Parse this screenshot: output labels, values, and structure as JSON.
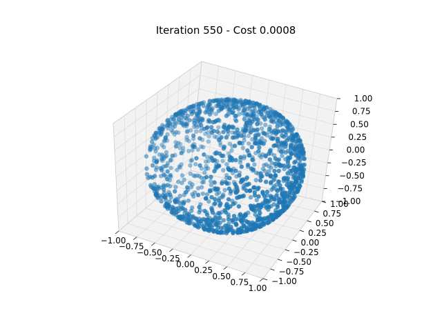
{
  "chart_data": {
    "type": "scatter",
    "title": "Iteration 550 - Cost 0.0008",
    "projection": "3d",
    "xlabel": "",
    "ylabel": "",
    "zlabel": "",
    "xlim": [
      -1.0,
      1.0
    ],
    "ylim": [
      -1.0,
      1.0
    ],
    "zlim": [
      -1.0,
      1.0
    ],
    "x_ticks": [
      -1.0,
      -0.75,
      -0.5,
      -0.25,
      0.0,
      0.25,
      0.5,
      0.75,
      1.0
    ],
    "y_ticks": [
      -1.0,
      -0.75,
      -0.5,
      -0.25,
      0.0,
      0.25,
      0.5,
      0.75,
      1.0
    ],
    "z_ticks": [
      -1.0,
      -0.75,
      -0.5,
      -0.25,
      0.0,
      0.25,
      0.5,
      0.75,
      1.0
    ],
    "x_tick_labels": [
      "−1.00",
      "−0.75",
      "−0.50",
      "−0.25",
      "0.00",
      "0.25",
      "0.50",
      "0.75",
      "1.00"
    ],
    "y_tick_labels": [
      "−1.00",
      "−0.75",
      "−0.50",
      "−0.25",
      "0.00",
      "0.25",
      "0.50",
      "0.75",
      "1.00"
    ],
    "z_tick_labels": [
      "−1.00",
      "−0.75",
      "−0.50",
      "−0.25",
      "0.00",
      "0.25",
      "0.50",
      "0.75",
      "1.00"
    ],
    "grid": true,
    "legend": "none",
    "marker_color": "#1f77b4",
    "pane_color": "#f2f2f2",
    "point_count_description": "dense sphere-like shell of points (approximately radius 1) with scattered interior outliers",
    "series": [
      {
        "points_xyz": [
          [
            0.0,
            0.0,
            1.0
          ],
          [
            0.3,
            0.2,
            0.93
          ],
          [
            -0.4,
            0.3,
            0.86
          ],
          [
            0.6,
            -0.3,
            0.74
          ],
          [
            -0.7,
            -0.4,
            0.59
          ],
          [
            0.9,
            0.1,
            0.42
          ],
          [
            -0.95,
            0.2,
            0.24
          ],
          [
            0.8,
            0.55,
            0.2
          ],
          [
            -0.6,
            0.78,
            0.15
          ],
          [
            0.1,
            -0.99,
            0.05
          ],
          [
            0.98,
            -0.1,
            0.0
          ],
          [
            -0.99,
            -0.05,
            0.0
          ],
          [
            0.5,
            0.86,
            -0.05
          ],
          [
            -0.3,
            -0.95,
            -0.1
          ],
          [
            0.7,
            -0.7,
            -0.15
          ],
          [
            -0.8,
            0.5,
            -0.3
          ],
          [
            0.85,
            0.3,
            -0.42
          ],
          [
            -0.6,
            -0.6,
            -0.52
          ],
          [
            0.4,
            0.6,
            -0.69
          ],
          [
            -0.3,
            0.4,
            -0.87
          ],
          [
            0.2,
            -0.3,
            -0.93
          ],
          [
            0.0,
            0.0,
            -1.0
          ],
          [
            -0.1,
            0.15,
            -0.98
          ],
          [
            0.45,
            0.1,
            -0.89
          ],
          [
            -0.5,
            -0.2,
            -0.84
          ],
          [
            0.1,
            0.2,
            0.3
          ],
          [
            -0.2,
            0.1,
            0.1
          ],
          [
            0.25,
            -0.2,
            -0.3
          ],
          [
            -0.15,
            0.3,
            0.45
          ],
          [
            0.05,
            -0.4,
            0.2
          ]
        ]
      }
    ]
  }
}
